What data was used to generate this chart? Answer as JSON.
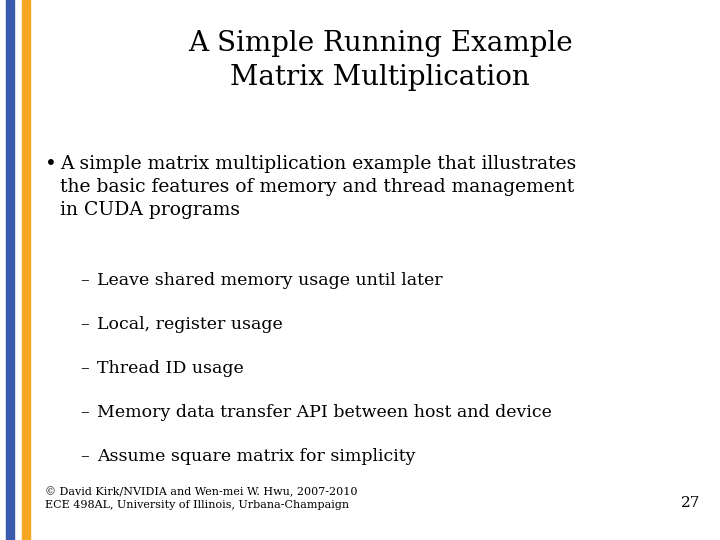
{
  "title_line1": "A Simple Running Example",
  "title_line2": "Matrix Multiplication",
  "bullet_text_lines": [
    "A simple matrix multiplication example that illustrates",
    "the basic features of memory and thread management",
    "in CUDA programs"
  ],
  "sub_bullets": [
    "Leave shared memory usage until later",
    "Local, register usage",
    "Thread ID usage",
    "Memory data transfer API between host and device",
    "Assume square matrix for simplicity"
  ],
  "footer_line1": "© David Kirk/NVIDIA and Wen-mei W. Hwu, 2007-2010",
  "footer_line2": "ECE 498AL, University of Illinois, Urbana-Champaign",
  "slide_number": "27",
  "bg_color": "#ffffff",
  "text_color": "#000000",
  "footer_color": "#000000",
  "left_bar_blue": "#3a5aad",
  "left_bar_orange": "#f5a623",
  "title_fontsize": 20,
  "body_fontsize": 13.5,
  "sub_fontsize": 12.5,
  "footer_fontsize": 8,
  "slide_num_fontsize": 11
}
